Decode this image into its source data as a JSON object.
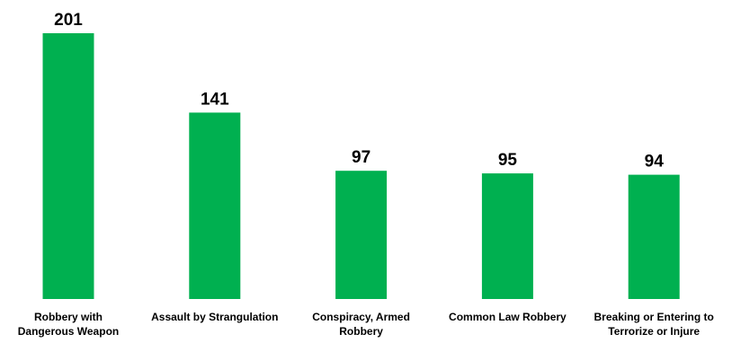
{
  "chart_data": {
    "type": "bar",
    "categories": [
      [
        "Robbery with",
        "Dangerous Weapon"
      ],
      [
        "Assault by Strangulation"
      ],
      [
        "Conspiracy, Armed",
        "Robbery"
      ],
      [
        "Common Law Robbery"
      ],
      [
        "Breaking or Entering to",
        "Terrorize or Injure"
      ]
    ],
    "values": [
      201,
      141,
      97,
      95,
      94
    ],
    "title": "",
    "xlabel": "",
    "ylabel": "",
    "ylim": [
      0,
      201
    ],
    "grid": false,
    "legend": "none",
    "bar_color": "#00B050",
    "data_labels": true
  }
}
